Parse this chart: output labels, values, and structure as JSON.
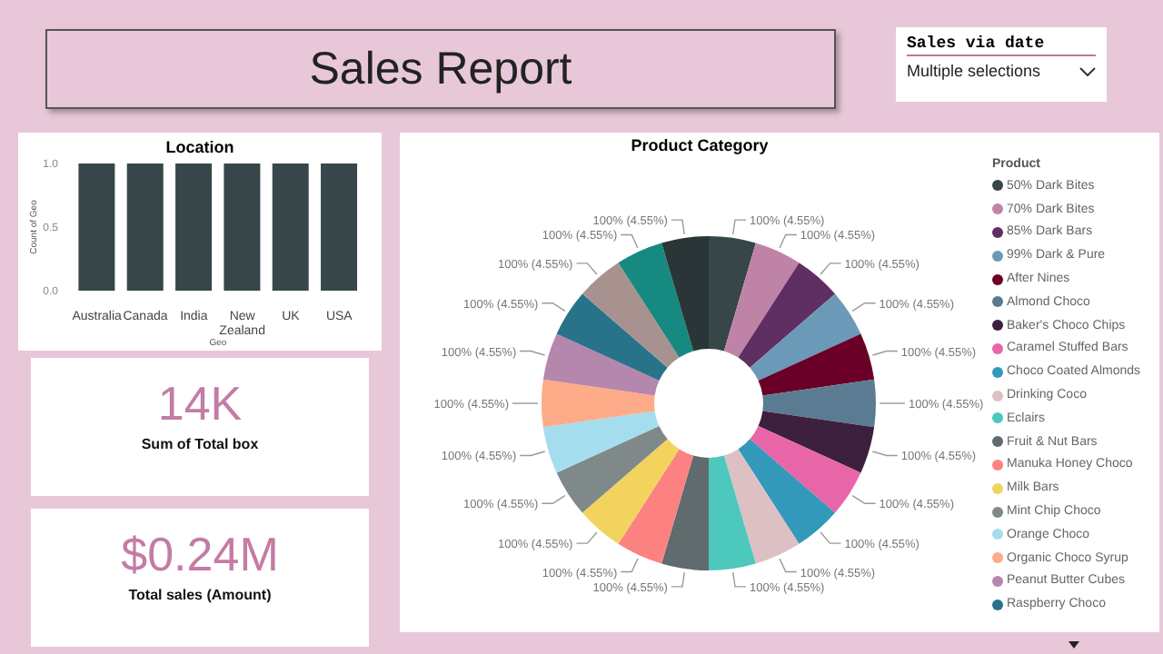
{
  "chart_data": [
    {
      "type": "other",
      "title": "Sales Report",
      "annotations": [
        "Sales via date",
        "Multiple selections"
      ]
    },
    {
      "type": "bar",
      "title": "Location",
      "xlabel": "Geo",
      "ylabel": "Count of Geo",
      "categories": [
        "Australia",
        "Canada",
        "India",
        "New Zealand",
        "UK",
        "USA"
      ],
      "values": [
        1,
        1,
        1,
        1,
        1,
        1
      ],
      "color": "#374649",
      "ylim": [
        0,
        1
      ],
      "yticks": [
        {
          "value": 0,
          "label": "0.0"
        },
        {
          "value": 0.5,
          "label": "0.5"
        },
        {
          "value": 1,
          "label": "1.0"
        }
      ],
      "grid": false
    },
    {
      "type": "other",
      "title": "Sum of Total box",
      "annotations": [
        "14K"
      ]
    },
    {
      "type": "other",
      "title": "Total sales (Amount)",
      "annotations": [
        "$0.24M"
      ]
    },
    {
      "type": "donut",
      "title": "Product Category",
      "legend_title": "Product",
      "legend": "right",
      "categories": [
        "50% Dark Bites",
        "70% Dark Bites",
        "85% Dark Bars",
        "99% Dark & Pure",
        "After Nines",
        "Almond Choco",
        "Baker's Choco Chips",
        "Caramel Stuffed Bars",
        "Choco Coated Almonds",
        "Drinking Coco",
        "Eclairs",
        "Fruit & Nut Bars",
        "Manuka Honey Choco",
        "Milk Bars",
        "Mint Chip Choco",
        "Orange Choco",
        "Organic Choco Syrup",
        "Peanut Butter Cubes",
        "Raspberry Choco",
        null,
        null,
        null
      ],
      "values": [
        100,
        100,
        100,
        100,
        100,
        100,
        100,
        100,
        100,
        100,
        100,
        100,
        100,
        100,
        100,
        100,
        100,
        100,
        100,
        100,
        100,
        100
      ],
      "value_labels": [
        "100% (4.55%)",
        "100% (4.55%)",
        "100% (4.55%)",
        "100% (4.55%)",
        "100% (4.55%)",
        "100% (4.55%)",
        "100% (4.55%)",
        "100% (4.55%)",
        "100% (4.55%)",
        "100% (4.55%)",
        "100% (4.55%)",
        "100% (4.55%)",
        "100% (4.55%)",
        "100% (4.55%)",
        "100% (4.55%)",
        "100% (4.55%)",
        "100% (4.55%)",
        "100% (4.55%)",
        "100% (4.55%)",
        "100% (4.55%)",
        "100% (4.55%)",
        "100% (4.55%)"
      ],
      "colors": [
        "#374649",
        "#c083a8",
        "#5f2e62",
        "#6b9ab8",
        "#6a0028",
        "#5b7b93",
        "#3d1f3e",
        "#e866a8",
        "#3399bb",
        "#ddc0c4",
        "#4dc8bc",
        "#5f6b6d",
        "#fb8281",
        "#f2d35e",
        "#7f898a",
        "#a4ddee",
        "#fdab89",
        "#b687ac",
        "#28738a",
        "#a7928f",
        "#168980",
        "#293537"
      ]
    }
  ]
}
